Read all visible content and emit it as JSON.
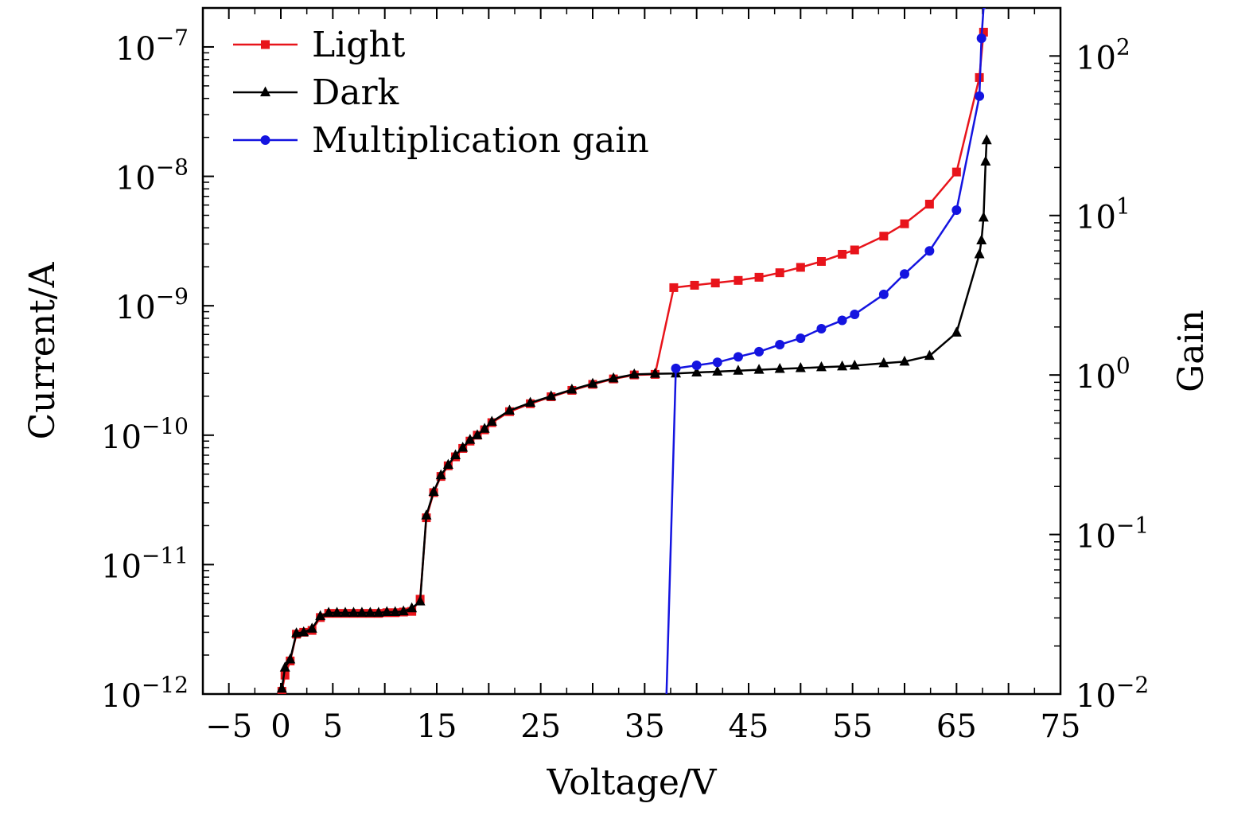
{
  "chart_data": {
    "type": "line",
    "title": "",
    "xlabel": "Voltage/V",
    "ylabel_left": "Current/A",
    "ylabel_right": "Gain",
    "xlim": [
      -7.5,
      75
    ],
    "x_ticks": [
      -5,
      0,
      5,
      15,
      25,
      35,
      45,
      55,
      65,
      75
    ],
    "ylim_left": [
      1e-12,
      2e-07
    ],
    "ylim_right": [
      0.01,
      200
    ],
    "y_left_scale": "log",
    "y_right_scale": "log",
    "y_left_ticks": [
      {
        "base": "10",
        "exp": "−7",
        "value": 1e-07
      },
      {
        "base": "10",
        "exp": "−8",
        "value": 1e-08
      },
      {
        "base": "10",
        "exp": "−9",
        "value": 1e-09
      },
      {
        "base": "10",
        "exp": "−10",
        "value": 1e-10
      },
      {
        "base": "10",
        "exp": "−11",
        "value": 1e-11
      },
      {
        "base": "10",
        "exp": "−12",
        "value": 1e-12
      }
    ],
    "y_right_ticks": [
      {
        "base": "10",
        "exp": "2",
        "value": 100
      },
      {
        "base": "10",
        "exp": "1",
        "value": 10
      },
      {
        "base": "10",
        "exp": "0",
        "value": 1
      },
      {
        "base": "10",
        "exp": "−1",
        "value": 0.1
      },
      {
        "base": "10",
        "exp": "−2",
        "value": 0.01
      }
    ],
    "legend_position": "top-left",
    "series": [
      {
        "name": "Light",
        "color": "#e8141b",
        "marker": "square",
        "axis": "left",
        "x": [
          0.1,
          0.4,
          0.9,
          1.5,
          2.2,
          3.0,
          3.8,
          4.6,
          5.4,
          6.2,
          7.0,
          7.8,
          8.6,
          9.4,
          10.2,
          11.0,
          11.8,
          12.6,
          13.4,
          14.0,
          14.7,
          15.4,
          16.1,
          16.8,
          17.5,
          18.2,
          18.9,
          19.6,
          20.3,
          22.0,
          24.0,
          26.0,
          28.0,
          30.0,
          32.0,
          34.0,
          36.0,
          37.8,
          39.8,
          41.8,
          44.0,
          46.0,
          48.0,
          50.0,
          52.0,
          54.0,
          55.2,
          58.0,
          60.0,
          62.4,
          65.0,
          67.2,
          67.6
        ],
        "values": [
          1.05e-12,
          1.4e-12,
          1.8e-12,
          2.9e-12,
          3e-12,
          3.1e-12,
          3.9e-12,
          4.2e-12,
          4.2e-12,
          4.2e-12,
          4.2e-12,
          4.2e-12,
          4.2e-12,
          4.2e-12,
          4.25e-12,
          4.25e-12,
          4.3e-12,
          4.35e-12,
          5.4e-12,
          2.3e-11,
          3.6e-11,
          4.8e-11,
          5.8e-11,
          6.8e-11,
          7.9e-11,
          9e-11,
          1e-10,
          1.1e-10,
          1.25e-10,
          1.52e-10,
          1.75e-10,
          1.98e-10,
          2.22e-10,
          2.47e-10,
          2.72e-10,
          2.92e-10,
          2.95e-10,
          1.38e-09,
          1.44e-09,
          1.5e-09,
          1.57e-09,
          1.66e-09,
          1.8e-09,
          1.98e-09,
          2.2e-09,
          2.5e-09,
          2.7e-09,
          3.45e-09,
          4.3e-09,
          6.1e-09,
          1.08e-08,
          5.8e-08,
          1.3e-07
        ]
      },
      {
        "name": "Dark",
        "color": "#000000",
        "marker": "triangle",
        "axis": "left",
        "x": [
          0.1,
          0.4,
          0.9,
          1.5,
          2.2,
          3.0,
          3.8,
          4.6,
          5.4,
          6.2,
          7.0,
          7.8,
          8.6,
          9.4,
          10.2,
          11.0,
          11.8,
          12.6,
          13.4,
          14.0,
          14.7,
          15.4,
          16.1,
          16.8,
          17.5,
          18.2,
          18.9,
          19.6,
          20.3,
          22.0,
          24.0,
          26.0,
          28.0,
          30.0,
          32.0,
          34.0,
          36.0,
          38.0,
          40.0,
          42.0,
          44.0,
          46.0,
          48.0,
          50.0,
          52.0,
          54.0,
          55.2,
          58.0,
          60.0,
          62.4,
          65.0,
          67.2,
          67.4,
          67.6,
          67.8,
          67.9
        ],
        "values": [
          1.1e-12,
          1.6e-12,
          1.85e-12,
          2.95e-12,
          3e-12,
          3.2e-12,
          4e-12,
          4.25e-12,
          4.25e-12,
          4.25e-12,
          4.25e-12,
          4.25e-12,
          4.25e-12,
          4.25e-12,
          4.3e-12,
          4.3e-12,
          4.35e-12,
          4.6e-12,
          5.2e-12,
          2.4e-11,
          3.65e-11,
          4.9e-11,
          5.9e-11,
          7e-11,
          8e-11,
          9.2e-11,
          1e-10,
          1.12e-10,
          1.27e-10,
          1.55e-10,
          1.78e-10,
          2e-10,
          2.25e-10,
          2.5e-10,
          2.75e-10,
          2.95e-10,
          2.98e-10,
          3e-10,
          3.05e-10,
          3.1e-10,
          3.15e-10,
          3.2e-10,
          3.25e-10,
          3.3e-10,
          3.35e-10,
          3.4e-10,
          3.45e-10,
          3.6e-10,
          3.7e-10,
          4.1e-10,
          6.2e-10,
          2.5e-09,
          3.2e-09,
          4.8e-09,
          1.3e-08,
          1.9e-08
        ]
      },
      {
        "name": "Multiplication gain",
        "color": "#1414e0",
        "marker": "circle",
        "axis": "right",
        "x": [
          37.1,
          38.0,
          40.0,
          42.0,
          44.0,
          46.0,
          48.0,
          50.0,
          52.0,
          54.0,
          55.2,
          58.0,
          60.0,
          62.4,
          65.0,
          67.2,
          67.4,
          67.6,
          67.8
        ],
        "values": [
          0.01,
          1.1,
          1.15,
          1.2,
          1.3,
          1.4,
          1.55,
          1.7,
          1.95,
          2.2,
          2.4,
          3.2,
          4.3,
          6.0,
          10.8,
          56,
          129,
          200,
          200
        ],
        "markers": [
          false,
          true,
          true,
          true,
          true,
          true,
          true,
          true,
          true,
          true,
          true,
          true,
          true,
          true,
          true,
          true,
          true,
          false,
          false
        ]
      }
    ]
  }
}
